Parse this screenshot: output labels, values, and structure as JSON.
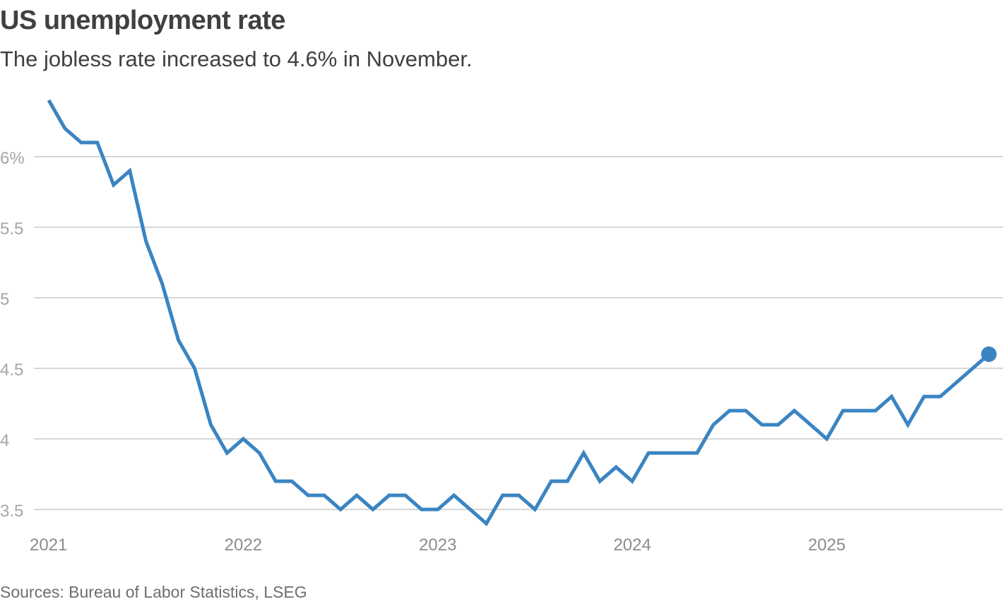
{
  "header": {
    "title": "US unemployment rate",
    "subtitle": "The jobless rate increased to 4.6% in November."
  },
  "footer": {
    "source": "Sources: Bureau of Labor Statistics, LSEG"
  },
  "colors": {
    "line": "#3a84c2",
    "gridline": "#c8c8c8",
    "tick_text": "#a6a6a6"
  },
  "chart_data": {
    "type": "line",
    "title": "US unemployment rate",
    "subtitle": "The jobless rate increased to 4.6% in November.",
    "xlabel": "",
    "ylabel": "",
    "ylim": [
      3.5,
      6.5
    ],
    "xlim": [
      "2021-01",
      "2025-11"
    ],
    "grid": "horizontal",
    "legend": "none",
    "y_ticks": [
      {
        "value": 6,
        "label": "6%"
      },
      {
        "value": 5.5,
        "label": "5.5"
      },
      {
        "value": 5,
        "label": "5"
      },
      {
        "value": 4.5,
        "label": "4.5"
      },
      {
        "value": 4,
        "label": "4"
      },
      {
        "value": 3.5,
        "label": "3.5"
      }
    ],
    "x_ticks": [
      {
        "value": "2021-01",
        "label": "2021"
      },
      {
        "value": "2022-01",
        "label": "2022"
      },
      {
        "value": "2023-01",
        "label": "2023"
      },
      {
        "value": "2024-01",
        "label": "2024"
      },
      {
        "value": "2025-01",
        "label": "2025"
      }
    ],
    "end_marker": "dot",
    "x": [
      "2021-01",
      "2021-02",
      "2021-03",
      "2021-04",
      "2021-05",
      "2021-06",
      "2021-07",
      "2021-08",
      "2021-09",
      "2021-10",
      "2021-11",
      "2021-12",
      "2022-01",
      "2022-02",
      "2022-03",
      "2022-04",
      "2022-05",
      "2022-06",
      "2022-07",
      "2022-08",
      "2022-09",
      "2022-10",
      "2022-11",
      "2022-12",
      "2023-01",
      "2023-02",
      "2023-03",
      "2023-04",
      "2023-05",
      "2023-06",
      "2023-07",
      "2023-08",
      "2023-09",
      "2023-10",
      "2023-11",
      "2023-12",
      "2024-01",
      "2024-02",
      "2024-03",
      "2024-04",
      "2024-05",
      "2024-06",
      "2024-07",
      "2024-08",
      "2024-09",
      "2024-10",
      "2024-11",
      "2024-12",
      "2025-01",
      "2025-02",
      "2025-03",
      "2025-04",
      "2025-05",
      "2025-06",
      "2025-07",
      "2025-08",
      "2025-09",
      "2025-10",
      "2025-11"
    ],
    "series": [
      {
        "values": [
          6.4,
          6.2,
          6.1,
          6.1,
          5.8,
          5.9,
          5.4,
          5.1,
          4.7,
          4.5,
          4.1,
          3.9,
          4.0,
          3.9,
          3.7,
          3.7,
          3.6,
          3.6,
          3.5,
          3.6,
          3.5,
          3.6,
          3.6,
          3.5,
          3.5,
          3.6,
          3.5,
          3.4,
          3.6,
          3.6,
          3.5,
          3.7,
          3.7,
          3.9,
          3.7,
          3.8,
          3.7,
          3.9,
          3.9,
          3.9,
          3.9,
          4.1,
          4.2,
          4.2,
          4.1,
          4.1,
          4.2,
          4.1,
          4.0,
          4.2,
          4.2,
          4.2,
          4.3,
          4.1,
          4.3,
          4.3,
          4.4,
          4.5,
          4.6
        ]
      }
    ]
  }
}
